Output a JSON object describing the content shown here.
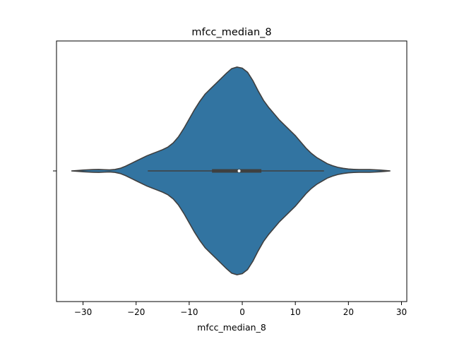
{
  "chart_data": {
    "type": "violin",
    "title": "mfcc_median_8",
    "xlabel": "mfcc_median_8",
    "ylabel": "",
    "xlim": [
      -35,
      31
    ],
    "x_ticks": [
      -30,
      -20,
      -10,
      0,
      10,
      20,
      30
    ],
    "x_tick_labels": [
      "−30",
      "−20",
      "−10",
      "0",
      "10",
      "20",
      "30"
    ],
    "grid": false,
    "colors": {
      "violin_fill": "#3274a1",
      "outline": "#3f3f3f",
      "box": "#3f3f3f",
      "median": "#ffffff"
    },
    "density": {
      "x": [
        -32.2,
        -31,
        -30,
        -29,
        -28,
        -27,
        -26,
        -25,
        -24,
        -23,
        -22,
        -21,
        -20,
        -19,
        -18,
        -17,
        -16,
        -15,
        -14,
        -13,
        -12,
        -11,
        -10,
        -9,
        -8,
        -7,
        -6,
        -5,
        -4,
        -3,
        -2,
        -1,
        0,
        1,
        2,
        3,
        4,
        5,
        6,
        7,
        8,
        9,
        10,
        11,
        12,
        13,
        14,
        15,
        16,
        17,
        18,
        19,
        20,
        21,
        22,
        23,
        24,
        25,
        26,
        27,
        27.9
      ],
      "width": [
        0.0,
        0.004,
        0.008,
        0.011,
        0.013,
        0.014,
        0.012,
        0.01,
        0.014,
        0.025,
        0.045,
        0.07,
        0.095,
        0.12,
        0.145,
        0.165,
        0.185,
        0.205,
        0.23,
        0.27,
        0.33,
        0.41,
        0.5,
        0.59,
        0.67,
        0.74,
        0.79,
        0.84,
        0.89,
        0.94,
        0.985,
        1.0,
        0.99,
        0.95,
        0.87,
        0.77,
        0.68,
        0.61,
        0.55,
        0.49,
        0.44,
        0.39,
        0.34,
        0.28,
        0.22,
        0.17,
        0.13,
        0.1,
        0.07,
        0.05,
        0.035,
        0.025,
        0.018,
        0.015,
        0.013,
        0.013,
        0.013,
        0.011,
        0.008,
        0.004,
        0.0
      ]
    },
    "box": {
      "q1": -5.7,
      "median": -0.6,
      "q3": 3.6,
      "whisker_low": -17.8,
      "whisker_high": 15.4
    }
  }
}
